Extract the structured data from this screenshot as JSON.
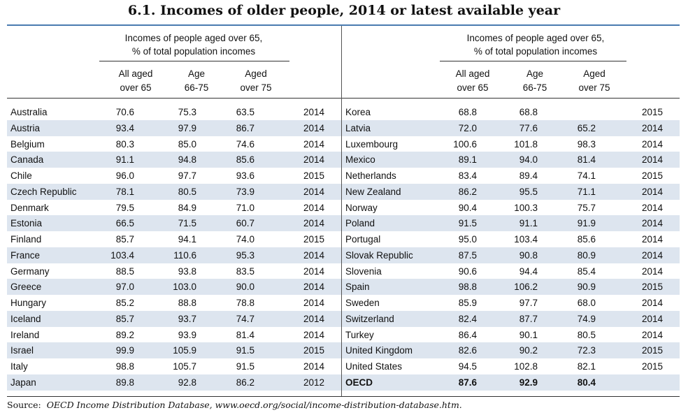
{
  "title": "6.1.  Incomes of older people, 2014 or latest available year",
  "header": {
    "group_line1": "Incomes of people aged over 65,",
    "group_line2": "% of total population incomes",
    "col1_line1": "All aged",
    "col1_line2": "over 65",
    "col2_line1": "Age",
    "col2_line2": "66-75",
    "col3_line1": "Aged",
    "col3_line2": "over 75"
  },
  "left_rows": [
    {
      "country": "Australia",
      "all": "70.6",
      "a6675": "75.3",
      "over75": "63.5",
      "year": "2014"
    },
    {
      "country": "Austria",
      "all": "93.4",
      "a6675": "97.9",
      "over75": "86.7",
      "year": "2014"
    },
    {
      "country": "Belgium",
      "all": "80.3",
      "a6675": "85.0",
      "over75": "74.6",
      "year": "2014"
    },
    {
      "country": "Canada",
      "all": "91.1",
      "a6675": "94.8",
      "over75": "85.6",
      "year": "2014"
    },
    {
      "country": "Chile",
      "all": "96.0",
      "a6675": "97.7",
      "over75": "93.6",
      "year": "2015"
    },
    {
      "country": "Czech Republic",
      "all": "78.1",
      "a6675": "80.5",
      "over75": "73.9",
      "year": "2014"
    },
    {
      "country": "Denmark",
      "all": "79.5",
      "a6675": "84.9",
      "over75": "71.0",
      "year": "2014"
    },
    {
      "country": "Estonia",
      "all": "66.5",
      "a6675": "71.5",
      "over75": "60.7",
      "year": "2014"
    },
    {
      "country": "Finland",
      "all": "85.7",
      "a6675": "94.1",
      "over75": "74.0",
      "year": "2015"
    },
    {
      "country": "France",
      "all": "103.4",
      "a6675": "110.6",
      "over75": "95.3",
      "year": "2014"
    },
    {
      "country": "Germany",
      "all": "88.5",
      "a6675": "93.8",
      "over75": "83.5",
      "year": "2014"
    },
    {
      "country": "Greece",
      "all": "97.0",
      "a6675": "103.0",
      "over75": "90.0",
      "year": "2014"
    },
    {
      "country": "Hungary",
      "all": "85.2",
      "a6675": "88.8",
      "over75": "78.8",
      "year": "2014"
    },
    {
      "country": "Iceland",
      "all": "85.7",
      "a6675": "93.7",
      "over75": "74.7",
      "year": "2014"
    },
    {
      "country": "Ireland",
      "all": "89.2",
      "a6675": "93.9",
      "over75": "81.4",
      "year": "2014"
    },
    {
      "country": "Israel",
      "all": "99.9",
      "a6675": "105.9",
      "over75": "91.5",
      "year": "2015"
    },
    {
      "country": "Italy",
      "all": "98.8",
      "a6675": "105.7",
      "over75": "91.5",
      "year": "2014"
    },
    {
      "country": "Japan",
      "all": "89.8",
      "a6675": "92.8",
      "over75": "86.2",
      "year": "2012"
    }
  ],
  "right_rows": [
    {
      "country": "Korea",
      "all": "68.8",
      "a6675": "68.8",
      "over75": "",
      "year": "2015"
    },
    {
      "country": "Latvia",
      "all": "72.0",
      "a6675": "77.6",
      "over75": "65.2",
      "year": "2014"
    },
    {
      "country": "Luxembourg",
      "all": "100.6",
      "a6675": "101.8",
      "over75": "98.3",
      "year": "2014"
    },
    {
      "country": "Mexico",
      "all": "89.1",
      "a6675": "94.0",
      "over75": "81.4",
      "year": "2014"
    },
    {
      "country": "Netherlands",
      "all": "83.4",
      "a6675": "89.4",
      "over75": "74.1",
      "year": "2015"
    },
    {
      "country": "New Zealand",
      "all": "86.2",
      "a6675": "95.5",
      "over75": "71.1",
      "year": "2014"
    },
    {
      "country": "Norway",
      "all": "90.4",
      "a6675": "100.3",
      "over75": "75.7",
      "year": "2014"
    },
    {
      "country": "Poland",
      "all": "91.5",
      "a6675": "91.1",
      "over75": "91.9",
      "year": "2014"
    },
    {
      "country": "Portugal",
      "all": "95.0",
      "a6675": "103.4",
      "over75": "85.6",
      "year": "2014"
    },
    {
      "country": "Slovak Republic",
      "all": "87.5",
      "a6675": "90.8",
      "over75": "80.9",
      "year": "2014"
    },
    {
      "country": "Slovenia",
      "all": "90.6",
      "a6675": "94.4",
      "over75": "85.4",
      "year": "2014"
    },
    {
      "country": "Spain",
      "all": "98.8",
      "a6675": "106.2",
      "over75": "90.9",
      "year": "2015"
    },
    {
      "country": "Sweden",
      "all": "85.9",
      "a6675": "97.7",
      "over75": "68.0",
      "year": "2014"
    },
    {
      "country": "Switzerland",
      "all": "82.4",
      "a6675": "87.7",
      "over75": "74.9",
      "year": "2014"
    },
    {
      "country": "Turkey",
      "all": "86.4",
      "a6675": "90.1",
      "over75": "80.5",
      "year": "2014"
    },
    {
      "country": "United Kingdom",
      "all": "82.6",
      "a6675": "90.2",
      "over75": "72.3",
      "year": "2015"
    },
    {
      "country": "United States",
      "all": "94.5",
      "a6675": "102.8",
      "over75": "82.1",
      "year": "2015"
    },
    {
      "country": "OECD",
      "all": "87.6",
      "a6675": "92.9",
      "over75": "80.4",
      "year": "",
      "bold": true
    }
  ],
  "source_label": "Source:",
  "source_text": "OECD Income Distribution Database, www.oecd.org/social/income-distribution-database.htm."
}
